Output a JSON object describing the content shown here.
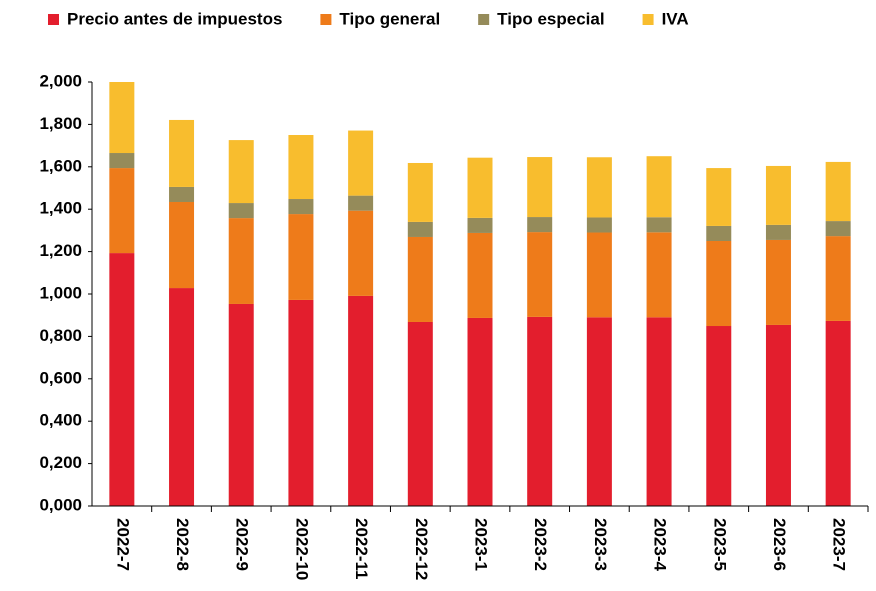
{
  "chart_data": {
    "type": "stacked_bar",
    "categories": [
      "2022-7",
      "2022-8",
      "2022-9",
      "2022-10",
      "2022-11",
      "2022-12",
      "2023-1",
      "2023-2",
      "2023-3",
      "2023-4",
      "2023-5",
      "2023-6",
      "2023-7"
    ],
    "series": [
      {
        "name": "Precio antes de impuestos",
        "color": "#e31e2d",
        "values": [
          1.193,
          1.028,
          0.953,
          0.972,
          0.991,
          0.868,
          0.887,
          0.892,
          0.89,
          0.89,
          0.849,
          0.854,
          0.873
        ]
      },
      {
        "name": "Tipo general",
        "color": "#ee7b1a",
        "values": [
          0.401,
          0.406,
          0.405,
          0.405,
          0.402,
          0.401,
          0.401,
          0.4,
          0.4,
          0.401,
          0.401,
          0.401,
          0.4
        ]
      },
      {
        "name": "Tipo especial",
        "color": "#958b5a",
        "values": [
          0.071,
          0.071,
          0.071,
          0.071,
          0.071,
          0.071,
          0.071,
          0.071,
          0.071,
          0.071,
          0.071,
          0.071,
          0.071
        ]
      },
      {
        "name": "IVA",
        "color": "#f8bd2e",
        "values": [
          0.335,
          0.316,
          0.297,
          0.302,
          0.307,
          0.278,
          0.284,
          0.283,
          0.284,
          0.288,
          0.273,
          0.278,
          0.279
        ]
      }
    ],
    "ylim": [
      0,
      2
    ],
    "yticks": [
      {
        "value": 0,
        "label": "0,000"
      },
      {
        "value": 0.2,
        "label": "0,200"
      },
      {
        "value": 0.4,
        "label": "0,400"
      },
      {
        "value": 0.6,
        "label": "0,600"
      },
      {
        "value": 0.8,
        "label": "0,800"
      },
      {
        "value": 1,
        "label": "1,000"
      },
      {
        "value": 1.2,
        "label": "1,200"
      },
      {
        "value": 1.4,
        "label": "1,400"
      },
      {
        "value": 1.6,
        "label": "1,600"
      },
      {
        "value": 1.8,
        "label": "1,800"
      },
      {
        "value": 2,
        "label": "2,000"
      }
    ],
    "legend": "top"
  }
}
